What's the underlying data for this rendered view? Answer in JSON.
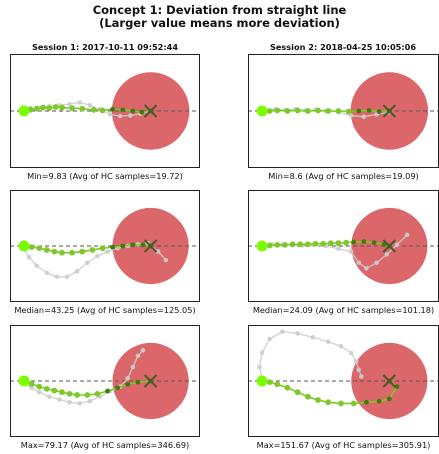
{
  "figure": {
    "title_line1": "Concept 1: Deviation from straight line",
    "title_line2": "(Larger value means more deviation)"
  },
  "columns": [
    {
      "title": "Session 1: 2017-10-11 09:52:44"
    },
    {
      "title": "Session 2: 2018-04-25 10:05:06"
    }
  ],
  "colors": {
    "target_circle": "#d95f62",
    "current_path": "#7ec82a",
    "current_path_dark": "#3f7a0f",
    "start_point": "#7cfc00",
    "hc_path": "#cccccc",
    "baseline": "#555555",
    "end_marker": "#4a5a2a"
  },
  "chart_data": [
    {
      "type": "scatter",
      "session": 1,
      "caption": "Min=9.83 (Avg of HC samples=19.72)",
      "current_path": [
        [
          0,
          0
        ],
        [
          0.05,
          0.03
        ],
        [
          0.1,
          0.04
        ],
        [
          0.15,
          0.06
        ],
        [
          0.2,
          0.05
        ],
        [
          0.25,
          0.07
        ],
        [
          0.3,
          0.06
        ],
        [
          0.38,
          0.05
        ],
        [
          0.46,
          0.04
        ],
        [
          0.55,
          0.02
        ],
        [
          0.62,
          0.01
        ],
        [
          0.7,
          0.03
        ],
        [
          0.78,
          0.02
        ],
        [
          0.86,
          0.0
        ],
        [
          0.93,
          -0.02
        ],
        [
          1.0,
          0.0
        ]
      ],
      "hc_path": [
        [
          0.05,
          0.0
        ],
        [
          0.12,
          0.06
        ],
        [
          0.2,
          0.09
        ],
        [
          0.28,
          0.1
        ],
        [
          0.36,
          0.12
        ],
        [
          0.44,
          0.15
        ],
        [
          0.52,
          0.1
        ],
        [
          0.6,
          0.03
        ],
        [
          0.68,
          -0.06
        ],
        [
          0.76,
          -0.09
        ],
        [
          0.84,
          -0.08
        ],
        [
          0.92,
          -0.05
        ],
        [
          1.0,
          0.0
        ]
      ]
    },
    {
      "type": "scatter",
      "session": 2,
      "caption": "Min=8.6 (Avg of HC samples=19.09)",
      "current_path": [
        [
          0,
          0
        ],
        [
          0.06,
          0.0
        ],
        [
          0.12,
          0.01
        ],
        [
          0.2,
          0.0
        ],
        [
          0.28,
          0.01
        ],
        [
          0.36,
          0.0
        ],
        [
          0.44,
          0.01
        ],
        [
          0.52,
          0.0
        ],
        [
          0.6,
          0.0
        ],
        [
          0.68,
          -0.01
        ],
        [
          0.76,
          0.0
        ],
        [
          0.84,
          0.01
        ],
        [
          0.92,
          -0.01
        ],
        [
          1.0,
          0.0
        ]
      ],
      "hc_path": [
        [
          0.04,
          0.0
        ],
        [
          0.1,
          0.03
        ],
        [
          0.18,
          0.02
        ],
        [
          0.26,
          0.03
        ],
        [
          0.34,
          0.01
        ],
        [
          0.42,
          0.02
        ],
        [
          0.5,
          0.0
        ],
        [
          0.6,
          -0.02
        ],
        [
          0.7,
          -0.08
        ],
        [
          0.8,
          -0.1
        ],
        [
          0.9,
          -0.06
        ],
        [
          1.0,
          -0.02
        ]
      ]
    },
    {
      "type": "scatter",
      "session": 1,
      "caption": "Median=43.25 (Avg of HC samples=125.05)",
      "current_path": [
        [
          0,
          0
        ],
        [
          0.06,
          -0.02
        ],
        [
          0.12,
          -0.04
        ],
        [
          0.18,
          -0.07
        ],
        [
          0.24,
          -0.1
        ],
        [
          0.3,
          -0.12
        ],
        [
          0.38,
          -0.12
        ],
        [
          0.46,
          -0.1
        ],
        [
          0.54,
          -0.07
        ],
        [
          0.62,
          -0.04
        ],
        [
          0.7,
          -0.02
        ],
        [
          0.78,
          0.0
        ],
        [
          0.86,
          0.02
        ],
        [
          0.94,
          0.02
        ],
        [
          1.0,
          0.0
        ]
      ],
      "hc_path": [
        [
          0,
          -0.05
        ],
        [
          0.04,
          -0.2
        ],
        [
          0.1,
          -0.35
        ],
        [
          0.18,
          -0.48
        ],
        [
          0.26,
          -0.55
        ],
        [
          0.34,
          -0.55
        ],
        [
          0.42,
          -0.45
        ],
        [
          0.5,
          -0.3
        ],
        [
          0.58,
          -0.18
        ],
        [
          0.66,
          -0.1
        ],
        [
          0.74,
          -0.04
        ],
        [
          0.82,
          0.0
        ],
        [
          0.9,
          0.03
        ],
        [
          0.98,
          0.05
        ],
        [
          1.06,
          -0.1
        ],
        [
          1.12,
          -0.25
        ]
      ]
    },
    {
      "type": "scatter",
      "session": 2,
      "caption": "Median=24.09 (Avg of HC samples=101.18)",
      "current_path": [
        [
          0,
          0
        ],
        [
          0.06,
          0.01
        ],
        [
          0.12,
          0.02
        ],
        [
          0.18,
          0.02
        ],
        [
          0.24,
          0.03
        ],
        [
          0.3,
          0.03
        ],
        [
          0.36,
          0.03
        ],
        [
          0.42,
          0.04
        ],
        [
          0.48,
          0.04
        ],
        [
          0.54,
          0.05
        ],
        [
          0.6,
          0.05
        ],
        [
          0.66,
          0.06
        ],
        [
          0.72,
          0.07
        ],
        [
          0.8,
          0.08
        ],
        [
          0.88,
          0.06
        ],
        [
          0.96,
          0.03
        ],
        [
          1.0,
          0.0
        ]
      ],
      "hc_path": [
        [
          0,
          0.02
        ],
        [
          0.08,
          0.03
        ],
        [
          0.16,
          0.02
        ],
        [
          0.24,
          0.02
        ],
        [
          0.32,
          0.01
        ],
        [
          0.4,
          0.02
        ],
        [
          0.5,
          0.0
        ],
        [
          0.6,
          -0.05
        ],
        [
          0.7,
          -0.1
        ],
        [
          0.76,
          -0.3
        ],
        [
          0.82,
          -0.4
        ],
        [
          0.9,
          -0.3
        ],
        [
          0.98,
          -0.15
        ],
        [
          1.06,
          0.02
        ],
        [
          1.14,
          0.2
        ]
      ]
    },
    {
      "type": "scatter",
      "session": 1,
      "caption": "Max=79.17 (Avg of HC samples=346.69)",
      "current_path": [
        [
          0,
          0
        ],
        [
          0.06,
          -0.05
        ],
        [
          0.12,
          -0.1
        ],
        [
          0.18,
          -0.14
        ],
        [
          0.24,
          -0.17
        ],
        [
          0.3,
          -0.2
        ],
        [
          0.36,
          -0.23
        ],
        [
          0.42,
          -0.25
        ],
        [
          0.5,
          -0.25
        ],
        [
          0.58,
          -0.23
        ],
        [
          0.66,
          -0.18
        ],
        [
          0.74,
          -0.12
        ],
        [
          0.82,
          -0.06
        ],
        [
          0.9,
          -0.02
        ],
        [
          1.0,
          0.0
        ]
      ],
      "hc_path": [
        [
          0,
          -0.02
        ],
        [
          0.06,
          -0.12
        ],
        [
          0.12,
          -0.2
        ],
        [
          0.2,
          -0.28
        ],
        [
          0.28,
          -0.33
        ],
        [
          0.36,
          -0.38
        ],
        [
          0.44,
          -0.4
        ],
        [
          0.52,
          -0.36
        ],
        [
          0.6,
          -0.28
        ],
        [
          0.68,
          -0.18
        ],
        [
          0.76,
          -0.1
        ],
        [
          0.82,
          0.05
        ],
        [
          0.86,
          0.25
        ],
        [
          0.9,
          0.45
        ],
        [
          0.94,
          0.55
        ]
      ]
    },
    {
      "type": "scatter",
      "session": 2,
      "caption": "Max=151.67 (Avg of HC samples=305.91)",
      "current_path": [
        [
          0,
          0
        ],
        [
          0.06,
          -0.02
        ],
        [
          0.12,
          -0.06
        ],
        [
          0.2,
          -0.12
        ],
        [
          0.28,
          -0.2
        ],
        [
          0.36,
          -0.28
        ],
        [
          0.44,
          -0.34
        ],
        [
          0.52,
          -0.38
        ],
        [
          0.62,
          -0.4
        ],
        [
          0.72,
          -0.4
        ],
        [
          0.82,
          -0.38
        ],
        [
          0.92,
          -0.36
        ],
        [
          1.0,
          -0.32
        ],
        [
          1.06,
          -0.1
        ],
        [
          1.0,
          0.0
        ]
      ],
      "hc_path": [
        [
          0,
          0.05
        ],
        [
          -0.02,
          0.25
        ],
        [
          0.0,
          0.5
        ],
        [
          0.06,
          0.75
        ],
        [
          0.16,
          0.88
        ],
        [
          0.28,
          0.85
        ],
        [
          0.4,
          0.78
        ],
        [
          0.52,
          0.7
        ],
        [
          0.62,
          0.62
        ],
        [
          0.7,
          0.5
        ],
        [
          0.74,
          0.35
        ],
        [
          0.76,
          0.2
        ],
        [
          0.78,
          0.08
        ]
      ]
    }
  ]
}
